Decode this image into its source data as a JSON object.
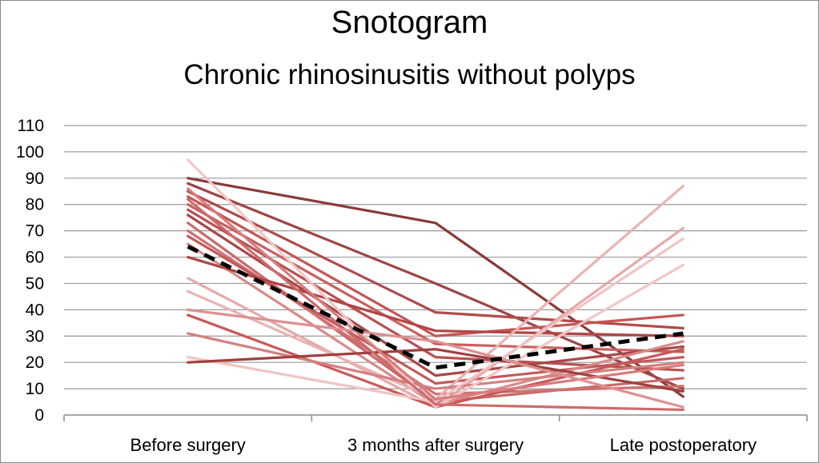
{
  "chart_data": {
    "type": "line",
    "title": "Snotogram",
    "subtitle": "Chronic rhinosinusitis without polyps",
    "xlabel": "",
    "ylabel": "",
    "categories": [
      "Before surgery",
      "3 months after surgery",
      "Late postoperatory"
    ],
    "ylim": [
      0,
      110
    ],
    "yticks": [
      0,
      10,
      20,
      30,
      40,
      50,
      60,
      70,
      80,
      90,
      100,
      110
    ],
    "grid": true,
    "legend": "none",
    "series": [
      {
        "values": [
          90,
          73,
          7
        ],
        "color": "#8b3a3a"
      },
      {
        "values": [
          88,
          50,
          10
        ],
        "color": "#9e4444"
      },
      {
        "values": [
          85,
          39,
          33
        ],
        "color": "#b04a4a"
      },
      {
        "values": [
          83,
          30,
          38
        ],
        "color": "#c45555"
      },
      {
        "values": [
          80,
          27,
          24
        ],
        "color": "#c86060"
      },
      {
        "values": [
          78,
          22,
          17
        ],
        "color": "#b85050"
      },
      {
        "values": [
          76,
          15,
          26
        ],
        "color": "#a84848"
      },
      {
        "values": [
          73,
          5,
          14
        ],
        "color": "#c96a6a"
      },
      {
        "values": [
          70,
          8,
          11
        ],
        "color": "#d07070"
      },
      {
        "values": [
          68,
          12,
          22
        ],
        "color": "#c25a5a"
      },
      {
        "values": [
          65,
          4,
          28
        ],
        "color": "#d88a8a"
      },
      {
        "values": [
          60,
          32,
          30
        ],
        "color": "#b04545"
      },
      {
        "values": [
          52,
          3,
          71
        ],
        "color": "#e6a8a8"
      },
      {
        "values": [
          47,
          6,
          87
        ],
        "color": "#eab2b2"
      },
      {
        "values": [
          38,
          3,
          25
        ],
        "color": "#c85858"
      },
      {
        "values": [
          31,
          10,
          20
        ],
        "color": "#d48080"
      },
      {
        "values": [
          22,
          5,
          67
        ],
        "color": "#f0c4c4"
      },
      {
        "values": [
          20,
          25,
          9
        ],
        "color": "#a04040"
      },
      {
        "values": [
          97,
          3,
          57
        ],
        "color": "#f2c6c6"
      },
      {
        "values": [
          82,
          4,
          2
        ],
        "color": "#cf6b6b"
      },
      {
        "values": [
          86,
          6,
          19
        ],
        "color": "#d97b7b"
      },
      {
        "values": [
          40,
          28,
          3
        ],
        "color": "#dd9090"
      },
      {
        "values": [
          64,
          18,
          31
        ],
        "color": "#000000",
        "dashed": true
      }
    ]
  }
}
